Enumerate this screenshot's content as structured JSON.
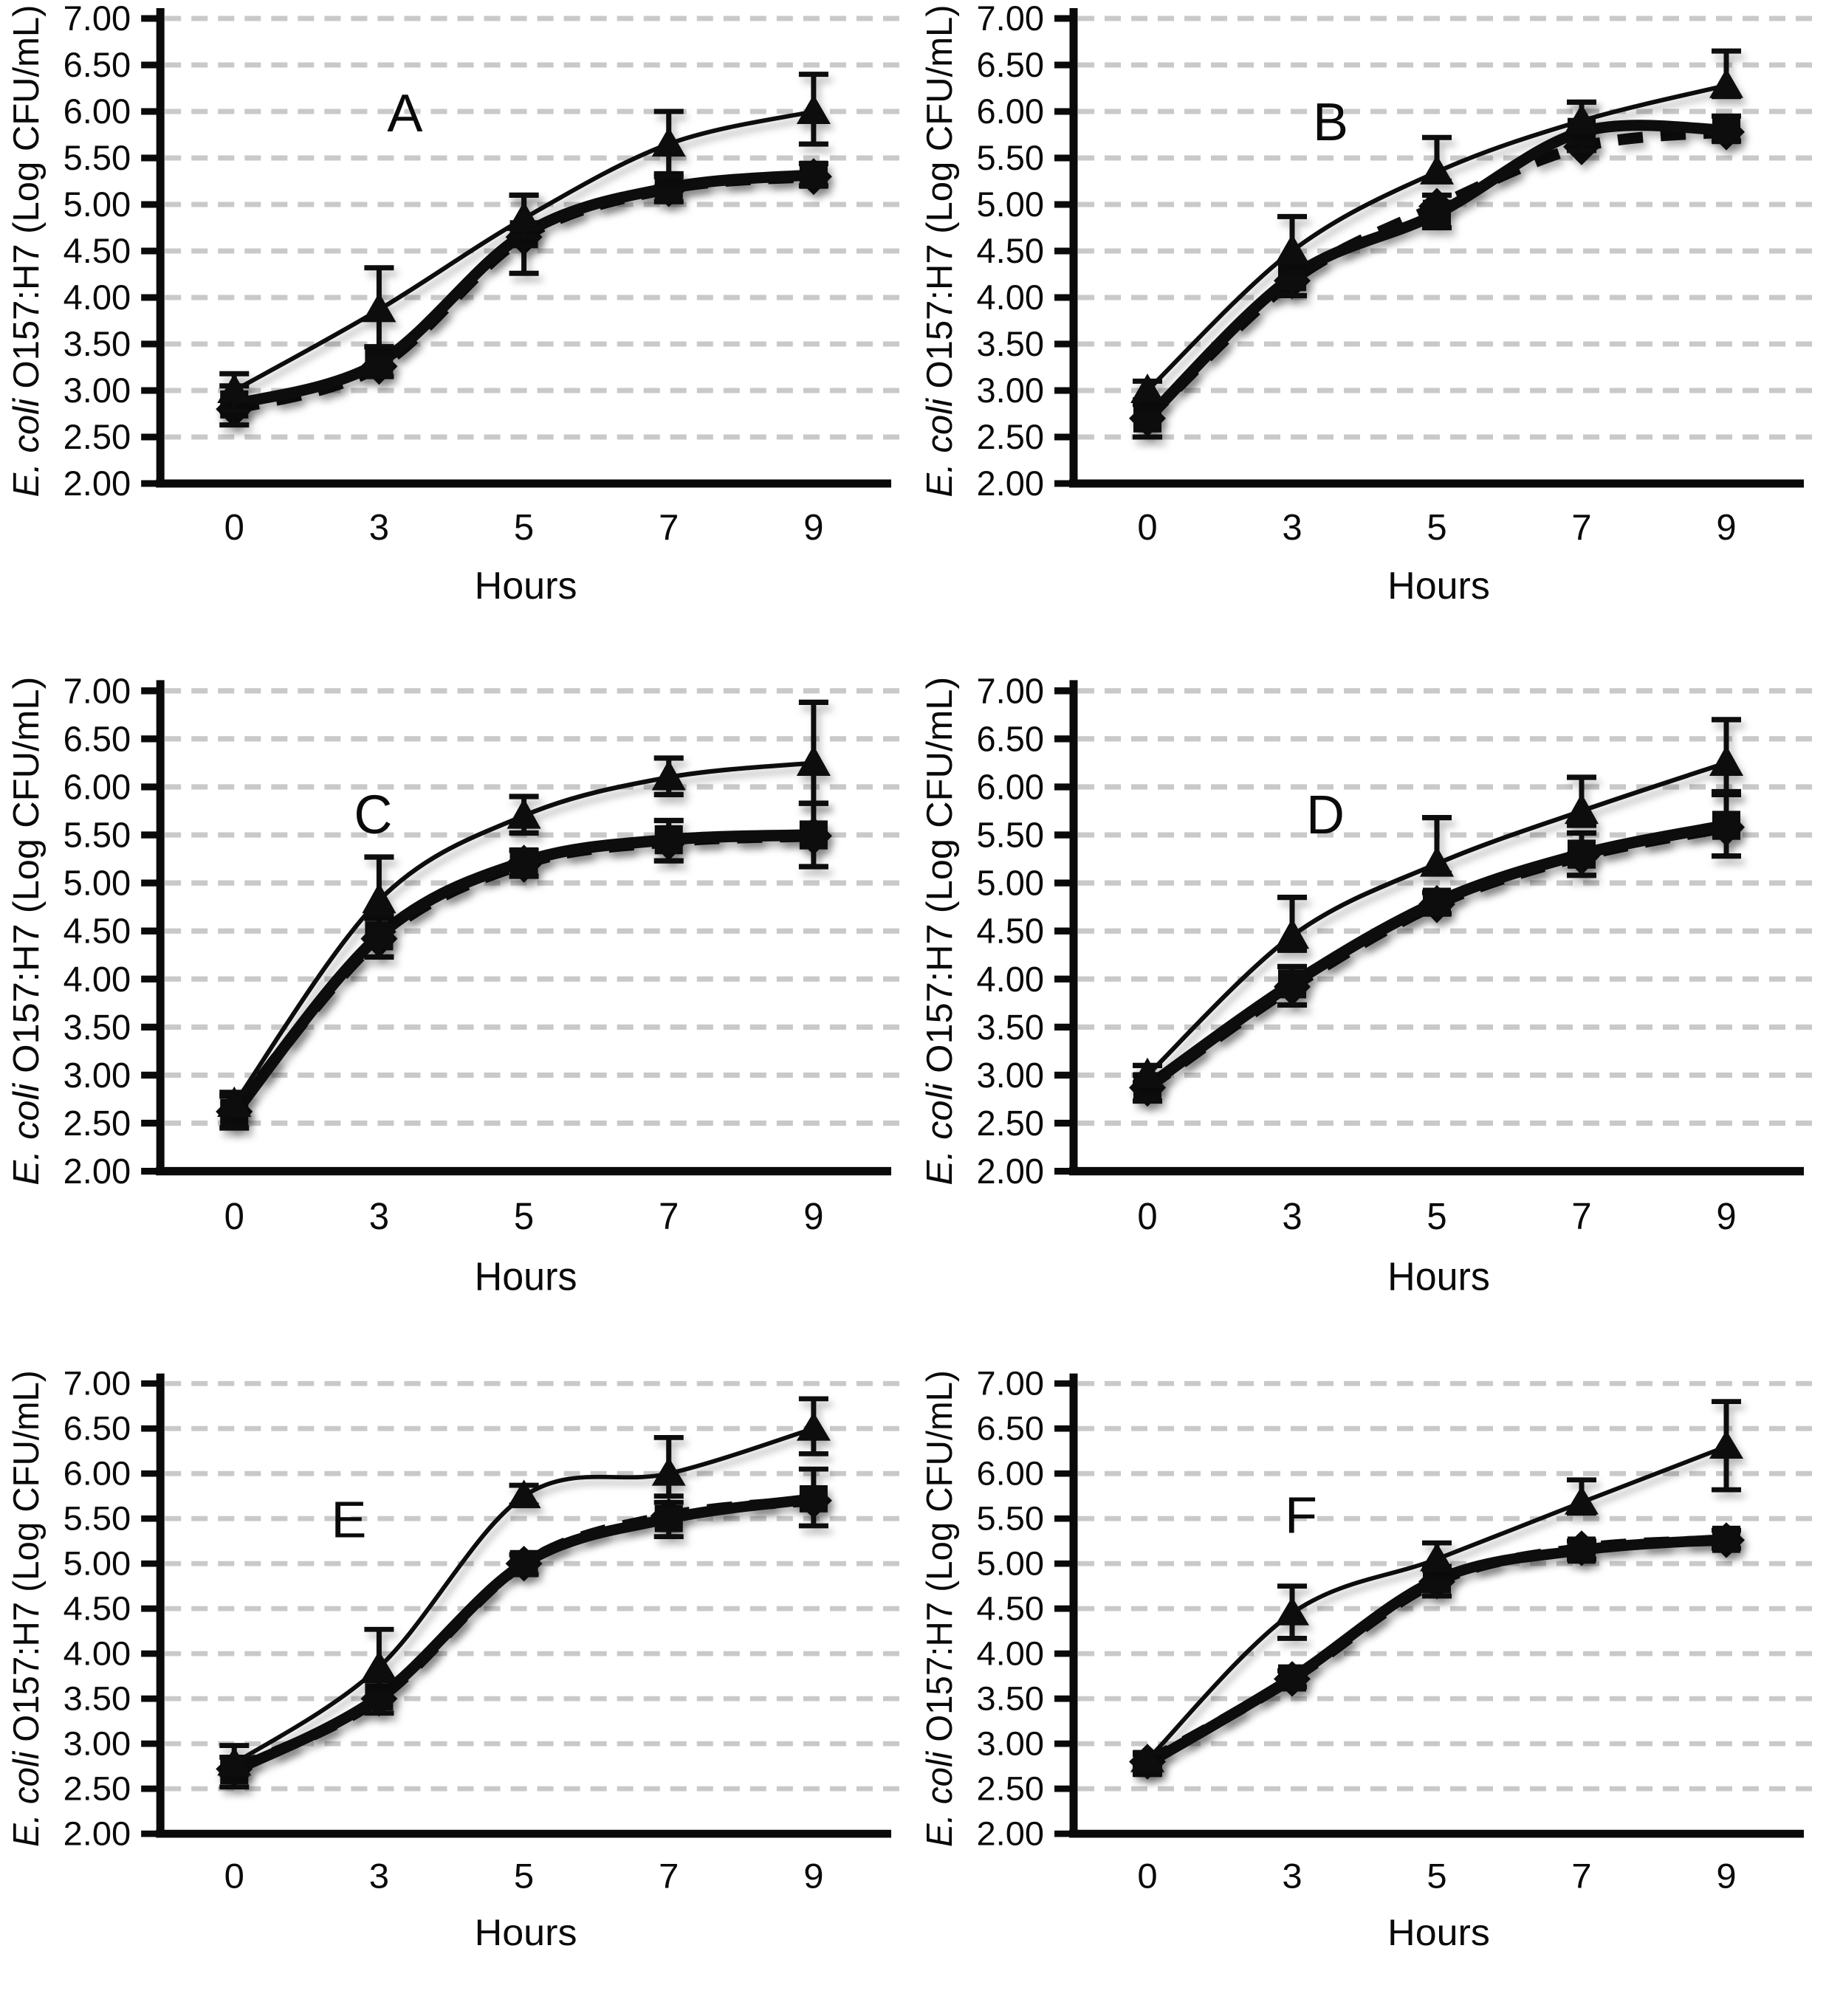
{
  "figure": {
    "panels_count": 6,
    "ink_color": "#0a0a0a",
    "grid_color": "#c9c9c9",
    "background": "#ffffff"
  },
  "chart_data": [
    {
      "type": "line",
      "panel_label": "A",
      "xlabel": "Hours",
      "ylabel_italic": "E. coli",
      "ylabel_regular": " O157:H7 (Log CFU/mL)",
      "x_categories": [
        "0",
        "3",
        "5",
        "7",
        "9"
      ],
      "yticks": [
        "7.00",
        "6.50",
        "6.00",
        "5.50",
        "5.00",
        "4.50",
        "4.00",
        "3.50",
        "3.00",
        "2.50",
        "2.00"
      ],
      "ylim": [
        2.0,
        7.0
      ],
      "grid": "dashed-horizontal",
      "legend": "none",
      "series": [
        {
          "name": "triangle-thin-solid",
          "marker": "triangle",
          "line_style": "solid",
          "line_weight": "thin",
          "values": [
            3.0,
            3.87,
            4.85,
            5.65,
            6.0
          ],
          "err_up": [
            0.18,
            0.45,
            0.25,
            0.35,
            0.4
          ],
          "err_down": [
            0.22,
            0.4,
            0.2,
            0.35,
            0.35
          ]
        },
        {
          "name": "square-thick-solid",
          "marker": "square",
          "line_style": "solid",
          "line_weight": "thick",
          "values": [
            2.85,
            3.3,
            4.68,
            5.18,
            5.32
          ],
          "err_up": [
            0.2,
            0.17,
            0.42,
            0.15,
            0.12
          ],
          "err_down": [
            0.22,
            0.15,
            0.42,
            0.15,
            0.12
          ]
        },
        {
          "name": "diamond-thick-dashed",
          "marker": "diamond",
          "line_style": "dashed",
          "line_weight": "thick",
          "values": [
            2.8,
            3.26,
            4.65,
            5.17,
            5.3
          ],
          "err_up": [
            0,
            0,
            0,
            0,
            0
          ],
          "err_down": [
            0,
            0,
            0,
            0,
            0
          ]
        }
      ]
    },
    {
      "type": "line",
      "panel_label": "B",
      "xlabel": "Hours",
      "ylabel_italic": "E. coli",
      "ylabel_regular": " O157:H7 (Log CFU/mL)",
      "x_categories": [
        "0",
        "3",
        "5",
        "7",
        "9"
      ],
      "yticks": [
        "7.00",
        "6.50",
        "6.00",
        "5.50",
        "5.00",
        "4.50",
        "4.00",
        "3.50",
        "3.00",
        "2.50",
        "2.00"
      ],
      "ylim": [
        2.0,
        7.0
      ],
      "grid": "dashed-horizontal",
      "legend": "none",
      "series": [
        {
          "name": "triangle-thin-solid",
          "marker": "triangle",
          "line_style": "solid",
          "line_weight": "thin",
          "values": [
            3.0,
            4.5,
            5.35,
            5.9,
            6.28
          ],
          "err_up": [
            0.1,
            0.37,
            0.37,
            0.2,
            0.37
          ],
          "err_down": [
            0.1,
            0.12,
            0.1,
            0.12,
            0.12
          ]
        },
        {
          "name": "square-thick-solid",
          "marker": "square",
          "line_style": "solid",
          "line_weight": "thick",
          "values": [
            2.7,
            4.22,
            4.9,
            5.78,
            5.8
          ],
          "err_up": [
            0.15,
            0.16,
            0.2,
            0.32,
            0.15
          ],
          "err_down": [
            0.2,
            0.2,
            0.15,
            0.2,
            0.12
          ]
        },
        {
          "name": "diamond-thick-dashed",
          "marker": "diamond",
          "line_style": "dashed",
          "line_weight": "thick",
          "values": [
            2.7,
            4.18,
            4.98,
            5.62,
            5.78
          ],
          "err_up": [
            0,
            0,
            0,
            0,
            0
          ],
          "err_down": [
            0,
            0,
            0,
            0,
            0
          ]
        }
      ]
    },
    {
      "type": "line",
      "panel_label": "C",
      "xlabel": "Hours",
      "ylabel_italic": "E. coli",
      "ylabel_regular": " O157:H7 (Log CFU/mL)",
      "x_categories": [
        "0",
        "3",
        "5",
        "7",
        "9"
      ],
      "yticks": [
        "7.00",
        "6.50",
        "6.00",
        "5.50",
        "5.00",
        "4.50",
        "4.00",
        "3.50",
        "3.00",
        "2.50",
        "2.00"
      ],
      "ylim": [
        2.0,
        7.0
      ],
      "grid": "dashed-horizontal",
      "legend": "none",
      "series": [
        {
          "name": "triangle-thin-solid",
          "marker": "triangle",
          "line_style": "solid",
          "line_weight": "thin",
          "values": [
            2.7,
            4.82,
            5.7,
            6.1,
            6.25
          ],
          "err_up": [
            0.12,
            0.45,
            0.2,
            0.2,
            0.63
          ],
          "err_down": [
            0.1,
            0.15,
            0.18,
            0.18,
            0.42
          ]
        },
        {
          "name": "square-thick-solid",
          "marker": "square",
          "line_style": "solid",
          "line_weight": "thick",
          "values": [
            2.6,
            4.45,
            5.22,
            5.45,
            5.5
          ],
          "err_up": [
            0.18,
            0.18,
            0.12,
            0.2,
            0.33
          ],
          "err_down": [
            0.15,
            0.22,
            0.15,
            0.22,
            0.33
          ]
        },
        {
          "name": "diamond-thick-dashed",
          "marker": "diamond",
          "line_style": "dashed",
          "line_weight": "thick",
          "values": [
            2.62,
            4.42,
            5.2,
            5.43,
            5.49
          ],
          "err_up": [
            0,
            0,
            0,
            0,
            0
          ],
          "err_down": [
            0,
            0,
            0,
            0,
            0
          ]
        }
      ]
    },
    {
      "type": "line",
      "panel_label": "D",
      "xlabel": "Hours",
      "ylabel_italic": "E. coli",
      "ylabel_regular": " O157:H7 (Log CFU/mL)",
      "x_categories": [
        "0",
        "3",
        "5",
        "7",
        "9"
      ],
      "yticks": [
        "7.00",
        "6.50",
        "6.00",
        "5.50",
        "5.00",
        "4.50",
        "4.00",
        "3.50",
        "3.00",
        "2.50",
        "2.00"
      ],
      "ylim": [
        2.0,
        7.0
      ],
      "grid": "dashed-horizontal",
      "legend": "none",
      "series": [
        {
          "name": "triangle-thin-solid",
          "marker": "triangle",
          "line_style": "solid",
          "line_weight": "thin",
          "values": [
            3.0,
            4.45,
            5.2,
            5.75,
            6.25
          ],
          "err_up": [
            0.1,
            0.4,
            0.48,
            0.35,
            0.45
          ],
          "err_down": [
            0.08,
            0.15,
            0.1,
            0.15,
            0.3
          ]
        },
        {
          "name": "square-thick-solid",
          "marker": "square",
          "line_style": "solid",
          "line_weight": "thick",
          "values": [
            2.88,
            3.95,
            4.8,
            5.3,
            5.6
          ],
          "err_up": [
            0.12,
            0.18,
            0.1,
            0.22,
            0.32
          ],
          "err_down": [
            0.15,
            0.22,
            0.12,
            0.22,
            0.32
          ]
        },
        {
          "name": "diamond-thick-dashed",
          "marker": "diamond",
          "line_style": "dashed",
          "line_weight": "thick",
          "values": [
            2.87,
            3.92,
            4.78,
            5.28,
            5.58
          ],
          "err_up": [
            0,
            0,
            0,
            0,
            0
          ],
          "err_down": [
            0,
            0,
            0,
            0,
            0
          ]
        }
      ]
    },
    {
      "type": "line",
      "panel_label": "E",
      "xlabel": "Hours",
      "ylabel_italic": "E. coli",
      "ylabel_regular": " O157:H7 (Log CFU/mL)",
      "x_categories": [
        "0",
        "3",
        "5",
        "7",
        "9"
      ],
      "yticks": [
        "7.00",
        "6.50",
        "6.00",
        "5.50",
        "5.00",
        "4.50",
        "4.00",
        "3.50",
        "3.00",
        "2.50",
        "2.00"
      ],
      "ylim": [
        2.0,
        7.0
      ],
      "grid": "dashed-horizontal",
      "legend": "none",
      "series": [
        {
          "name": "triangle-thin-solid",
          "marker": "triangle",
          "line_style": "solid",
          "line_weight": "thin",
          "values": [
            2.78,
            3.85,
            5.75,
            6.0,
            6.5
          ],
          "err_up": [
            0.2,
            0.42,
            0.12,
            0.4,
            0.33
          ],
          "err_down": [
            0.12,
            0.15,
            0.1,
            0.25,
            0.28
          ]
        },
        {
          "name": "square-thick-solid",
          "marker": "square",
          "line_style": "solid",
          "line_weight": "thick",
          "values": [
            2.7,
            3.52,
            5.0,
            5.5,
            5.72
          ],
          "err_up": [
            0.15,
            0.18,
            0.1,
            0.18,
            0.33
          ],
          "err_down": [
            0.18,
            0.18,
            0.12,
            0.2,
            0.3
          ]
        },
        {
          "name": "diamond-thick-dashed",
          "marker": "diamond",
          "line_style": "dashed",
          "line_weight": "thick",
          "values": [
            2.72,
            3.5,
            5.0,
            5.53,
            5.7
          ],
          "err_up": [
            0,
            0,
            0,
            0,
            0
          ],
          "err_down": [
            0,
            0,
            0,
            0,
            0
          ]
        }
      ]
    },
    {
      "type": "line",
      "panel_label": "F",
      "xlabel": "Hours",
      "ylabel_italic": "E. coli",
      "ylabel_regular": " O157:H7 (Log CFU/mL)",
      "x_categories": [
        "0",
        "3",
        "5",
        "7",
        "9"
      ],
      "yticks": [
        "7.00",
        "6.50",
        "6.00",
        "5.50",
        "5.00",
        "4.50",
        "4.00",
        "3.50",
        "3.00",
        "2.50",
        "2.00"
      ],
      "ylim": [
        2.0,
        7.0
      ],
      "grid": "dashed-horizontal",
      "legend": "none",
      "series": [
        {
          "name": "triangle-thin-solid",
          "marker": "triangle",
          "line_style": "solid",
          "line_weight": "thin",
          "values": [
            2.82,
            4.45,
            5.05,
            5.68,
            6.3
          ],
          "err_up": [
            0.08,
            0.3,
            0.18,
            0.25,
            0.5
          ],
          "err_down": [
            0.06,
            0.28,
            0.12,
            0.12,
            0.48
          ]
        },
        {
          "name": "square-thick-solid",
          "marker": "square",
          "line_style": "solid",
          "line_weight": "thick",
          "values": [
            2.78,
            3.73,
            4.82,
            5.15,
            5.27
          ],
          "err_up": [
            0.1,
            0.08,
            0.15,
            0.1,
            0.1
          ],
          "err_down": [
            0.12,
            0.1,
            0.18,
            0.1,
            0.1
          ]
        },
        {
          "name": "diamond-thick-dashed",
          "marker": "diamond",
          "line_style": "dashed",
          "line_weight": "thick",
          "values": [
            2.8,
            3.72,
            4.8,
            5.17,
            5.26
          ],
          "err_up": [
            0,
            0,
            0,
            0,
            0
          ],
          "err_down": [
            0,
            0,
            0,
            0,
            0
          ]
        }
      ]
    }
  ]
}
